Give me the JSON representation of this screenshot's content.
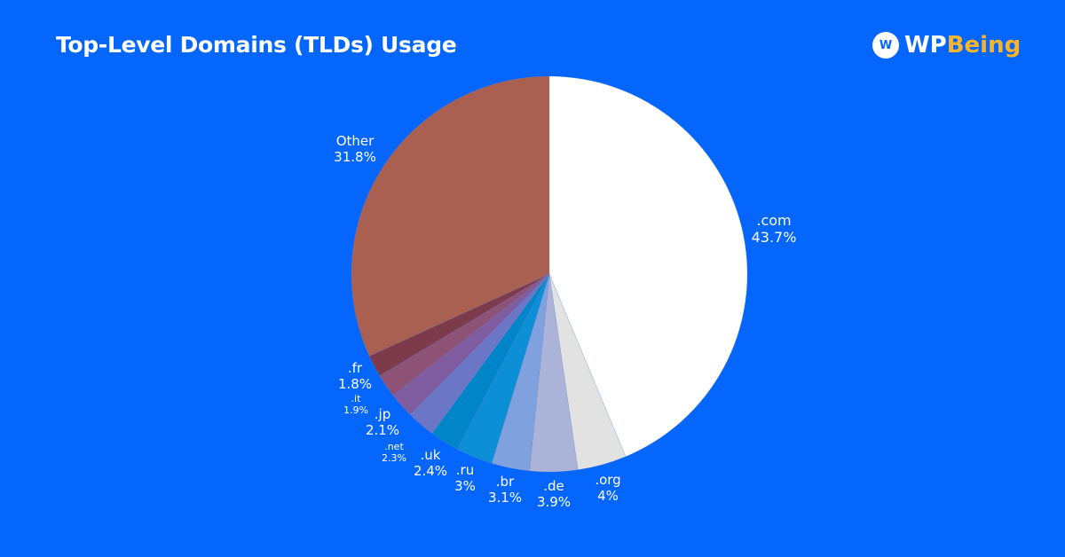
{
  "title": "Top-Level Domains (TLDs) Usage",
  "logo": {
    "text_a": "WP",
    "text_b": "Being"
  },
  "chart_data": {
    "type": "pie",
    "title": "Top-Level Domains (TLDs) Usage",
    "start": "top",
    "direction": "clockwise",
    "slices": [
      {
        "label": ".com",
        "value": 43.7,
        "display": "43.7%",
        "color": "#ffffff"
      },
      {
        "label": ".org",
        "value": 4,
        "display": "4%",
        "color": "#e2e2e2"
      },
      {
        "label": ".de",
        "value": 3.9,
        "display": "3.9%",
        "color": "#abb3d9"
      },
      {
        "label": ".br",
        "value": 3.1,
        "display": "3.1%",
        "color": "#7fa2de"
      },
      {
        "label": ".ru",
        "value": 3,
        "display": "3%",
        "color": "#0d8fd8"
      },
      {
        "label": ".uk",
        "value": 2.4,
        "display": "2.4%",
        "color": "#0086c8"
      },
      {
        "label": ".net",
        "value": 2.3,
        "display": "2.3%",
        "color": "#6b77c6"
      },
      {
        "label": ".jp",
        "value": 2.1,
        "display": "2.1%",
        "color": "#7f5da0"
      },
      {
        "label": ".it",
        "value": 1.9,
        "display": "1.9%",
        "color": "#8d5276"
      },
      {
        "label": ".fr",
        "value": 1.8,
        "display": "1.8%",
        "color": "#7c3a4b"
      },
      {
        "label": "Other",
        "value": 31.8,
        "display": "31.8%",
        "color": "#a96050"
      }
    ]
  }
}
